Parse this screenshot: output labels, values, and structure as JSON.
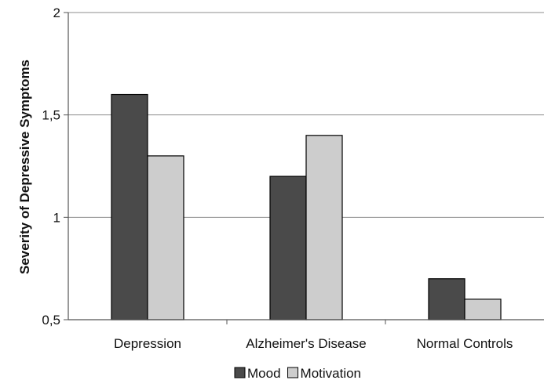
{
  "chart_data": {
    "type": "bar",
    "categories": [
      "Depression",
      "Alzheimer's Disease",
      "Normal Controls"
    ],
    "series": [
      {
        "name": "Mood",
        "values": [
          1.6,
          1.2,
          0.7
        ],
        "color": "#4a4a4a"
      },
      {
        "name": "Motivation",
        "values": [
          1.3,
          1.4,
          0.6
        ],
        "color": "#cdcdcd"
      }
    ],
    "ylabel": "Severity of Depressive Symptoms",
    "ylim": [
      0.5,
      2
    ],
    "yticks": [
      {
        "value": 0.5,
        "label": "0,5"
      },
      {
        "value": 1,
        "label": "1"
      },
      {
        "value": 1.5,
        "label": "1,5"
      },
      {
        "value": 2,
        "label": "2"
      }
    ],
    "grid": true,
    "legend": "bottom-center"
  }
}
